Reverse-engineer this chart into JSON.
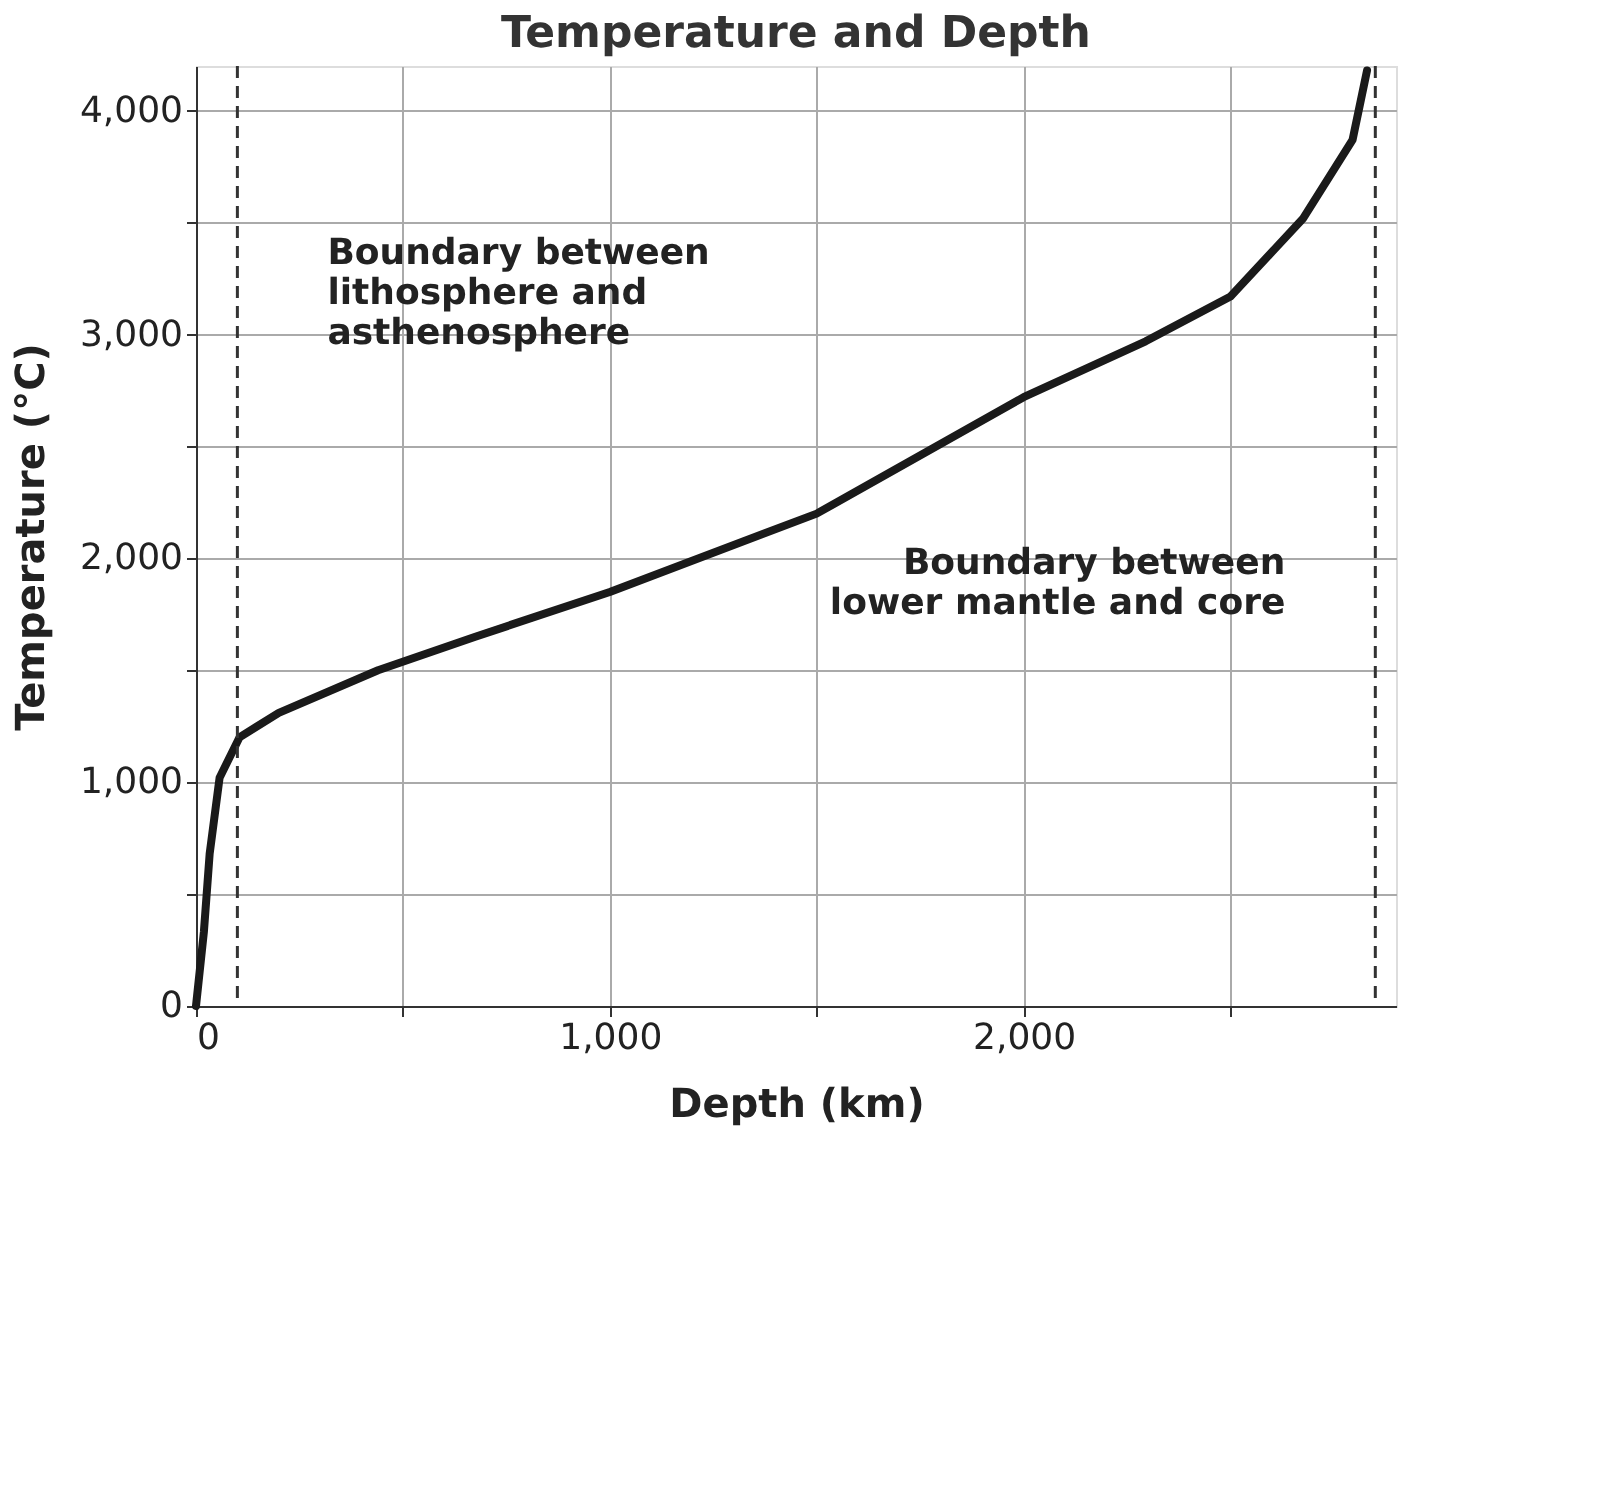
{
  "chart_data": {
    "type": "line",
    "title": "Temperature and Depth",
    "xlabel": "Depth (km)",
    "ylabel": "Temperature (°C)",
    "x": [
      0,
      19,
      33,
      57,
      105,
      200,
      440,
      675,
      1000,
      1500,
      2000,
      2295,
      2500,
      2676,
      2795,
      2830
    ],
    "series": [
      {
        "color": "#1a1a1a",
        "values": [
          0,
          330,
          680,
          1020,
          1200,
          1310,
          1500,
          1650,
          1850,
          2200,
          2720,
          2970,
          3170,
          3520,
          3870,
          4180
        ]
      }
    ],
    "xlim": [
      0,
      2900
    ],
    "ylim": [
      0,
      4200
    ],
    "xticks": [
      0,
      {
        "value": 500,
        "label": null
      },
      {
        "value": 1000,
        "label": "1,000"
      },
      {
        "value": 1500,
        "label": null
      },
      {
        "value": 2000,
        "label": "2,000"
      },
      {
        "value": 2500,
        "label": null
      }
    ],
    "yticks": [
      0,
      {
        "value": 500,
        "label": null
      },
      {
        "value": 1000,
        "label": "1,000"
      },
      {
        "value": 1500,
        "label": null
      },
      {
        "value": 2000,
        "label": "2,000"
      },
      {
        "value": 2500,
        "label": null
      },
      {
        "value": 3000,
        "label": "3,000"
      },
      {
        "value": 3500,
        "label": null
      },
      {
        "value": 4000,
        "label": "4,000"
      }
    ],
    "ref_lines": [
      {
        "axis": "x",
        "value": 100,
        "label": "Boundary between\nlithosphere and\nasthenosphere",
        "line_style": "dashed",
        "color": "#333333"
      },
      {
        "axis": "x",
        "value": 2850,
        "label": "Boundary between\nlower mantle and core",
        "line_style": "dashed",
        "color": "#333333"
      }
    ],
    "grid": true,
    "line_style": "solid",
    "marker": "none"
  }
}
